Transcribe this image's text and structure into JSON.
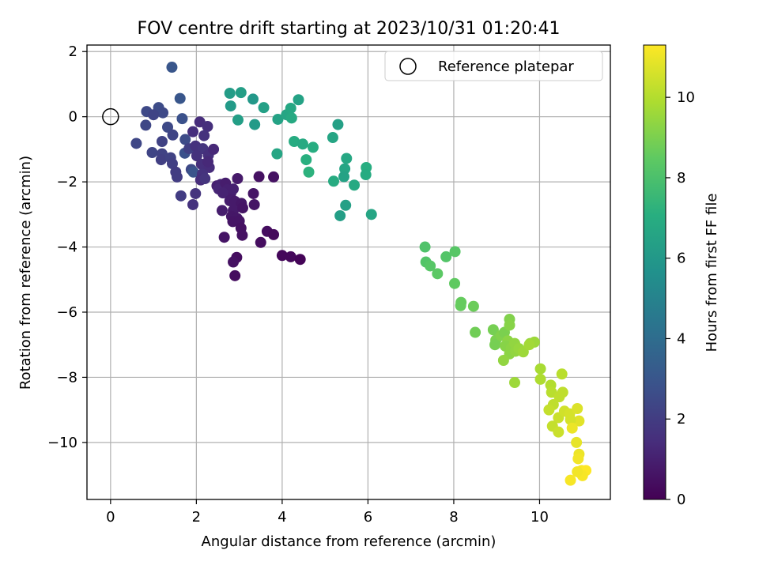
{
  "chart_data": {
    "type": "scatter",
    "title": "FOV centre drift starting at 2023/10/31 01:20:41",
    "xlabel": "Angular distance from reference (arcmin)",
    "ylabel": "Rotation from reference (arcmin)",
    "colorbar_label": "Hours from first FF file",
    "xlim": [
      -0.55,
      11.65
    ],
    "ylim": [
      -11.75,
      2.2
    ],
    "clim": [
      0,
      11.3
    ],
    "colormap": "viridis",
    "x_ticks": [
      0,
      2,
      4,
      6,
      8,
      10
    ],
    "x_tick_labels": [
      "0",
      "2",
      "4",
      "6",
      "8",
      "10"
    ],
    "y_ticks": [
      2,
      0,
      -2,
      -4,
      -6,
      -8,
      -10
    ],
    "y_tick_labels": [
      "2",
      "0",
      "−2",
      "−4",
      "−6",
      "−8",
      "−10"
    ],
    "colorbar_ticks": [
      0,
      2,
      4,
      6,
      8,
      10
    ],
    "colorbar_tick_labels": [
      "0",
      "2",
      "4",
      "6",
      "8",
      "10"
    ],
    "grid": true,
    "legend": {
      "placement": "upper right",
      "label": "Reference platepar"
    },
    "reference_point": {
      "x": 0,
      "y": 0
    },
    "points": [
      {
        "x": 1.43,
        "y": 1.52,
        "t": 3.0
      },
      {
        "x": 1.62,
        "y": 0.56,
        "t": 3.0
      },
      {
        "x": 0.84,
        "y": 0.16,
        "t": 2.5
      },
      {
        "x": 1.12,
        "y": 0.28,
        "t": 2.6
      },
      {
        "x": 1.22,
        "y": 0.12,
        "t": 2.5
      },
      {
        "x": 1.0,
        "y": 0.06,
        "t": 2.3
      },
      {
        "x": 0.82,
        "y": -0.26,
        "t": 2.4
      },
      {
        "x": 1.33,
        "y": -0.32,
        "t": 2.5
      },
      {
        "x": 0.6,
        "y": -0.82,
        "t": 2.4
      },
      {
        "x": 1.2,
        "y": -0.76,
        "t": 2.2
      },
      {
        "x": 0.97,
        "y": -1.1,
        "t": 2.3
      },
      {
        "x": 1.2,
        "y": -1.14,
        "t": 2.2
      },
      {
        "x": 1.18,
        "y": -1.32,
        "t": 2.1
      },
      {
        "x": 1.4,
        "y": -1.26,
        "t": 2.2
      },
      {
        "x": 1.44,
        "y": -1.44,
        "t": 2.1
      },
      {
        "x": 1.52,
        "y": -1.7,
        "t": 2.0
      },
      {
        "x": 1.55,
        "y": -1.85,
        "t": 2.0
      },
      {
        "x": 1.67,
        "y": -0.06,
        "t": 2.8
      },
      {
        "x": 1.45,
        "y": -0.56,
        "t": 2.3
      },
      {
        "x": 1.74,
        "y": -0.7,
        "t": 2.6
      },
      {
        "x": 1.73,
        "y": -1.12,
        "t": 2.8
      },
      {
        "x": 1.83,
        "y": -0.98,
        "t": 2.1
      },
      {
        "x": 1.88,
        "y": -1.62,
        "t": 2.5
      },
      {
        "x": 1.93,
        "y": -1.7,
        "t": 2.9
      },
      {
        "x": 1.64,
        "y": -2.43,
        "t": 2.0
      },
      {
        "x": 1.92,
        "y": -2.7,
        "t": 1.6
      },
      {
        "x": 1.98,
        "y": -2.36,
        "t": 1.7
      },
      {
        "x": 2.08,
        "y": -0.16,
        "t": 1.4
      },
      {
        "x": 2.26,
        "y": -0.3,
        "t": 1.5
      },
      {
        "x": 1.92,
        "y": -0.46,
        "t": 1.5
      },
      {
        "x": 2.18,
        "y": -0.58,
        "t": 1.6
      },
      {
        "x": 1.98,
        "y": -0.9,
        "t": 1.6
      },
      {
        "x": 2.15,
        "y": -0.98,
        "t": 1.7
      },
      {
        "x": 2.01,
        "y": -1.2,
        "t": 1.6
      },
      {
        "x": 2.28,
        "y": -1.18,
        "t": 1.5
      },
      {
        "x": 2.12,
        "y": -1.46,
        "t": 1.5
      },
      {
        "x": 2.3,
        "y": -1.56,
        "t": 1.4
      },
      {
        "x": 2.14,
        "y": -1.76,
        "t": 1.6
      },
      {
        "x": 2.1,
        "y": -1.94,
        "t": 1.4
      },
      {
        "x": 2.2,
        "y": -1.9,
        "t": 1.7
      },
      {
        "x": 2.27,
        "y": -1.38,
        "t": 1.3
      },
      {
        "x": 2.4,
        "y": -1.0,
        "t": 1.3
      },
      {
        "x": 2.48,
        "y": -2.12,
        "t": 1.0
      },
      {
        "x": 2.57,
        "y": -2.08,
        "t": 1.1
      },
      {
        "x": 2.52,
        "y": -2.22,
        "t": 1.2
      },
      {
        "x": 2.68,
        "y": -2.04,
        "t": 0.9
      },
      {
        "x": 2.72,
        "y": -2.24,
        "t": 1.0
      },
      {
        "x": 2.8,
        "y": -2.36,
        "t": 0.9
      },
      {
        "x": 2.62,
        "y": -2.34,
        "t": 1.1
      },
      {
        "x": 2.86,
        "y": -2.22,
        "t": 1.0
      },
      {
        "x": 2.96,
        "y": -1.9,
        "t": 0.8
      },
      {
        "x": 2.78,
        "y": -2.58,
        "t": 0.9
      },
      {
        "x": 2.9,
        "y": -2.6,
        "t": 0.8
      },
      {
        "x": 3.05,
        "y": -2.66,
        "t": 0.7
      },
      {
        "x": 2.6,
        "y": -2.88,
        "t": 0.9
      },
      {
        "x": 2.86,
        "y": -2.88,
        "t": 0.8
      },
      {
        "x": 2.82,
        "y": -3.06,
        "t": 0.7
      },
      {
        "x": 2.95,
        "y": -3.12,
        "t": 0.7
      },
      {
        "x": 2.85,
        "y": -3.22,
        "t": 0.6
      },
      {
        "x": 3.0,
        "y": -3.2,
        "t": 0.6
      },
      {
        "x": 3.08,
        "y": -2.8,
        "t": 0.6
      },
      {
        "x": 3.33,
        "y": -2.36,
        "t": 0.6
      },
      {
        "x": 3.35,
        "y": -2.7,
        "t": 0.6
      },
      {
        "x": 3.04,
        "y": -3.42,
        "t": 0.5
      },
      {
        "x": 3.07,
        "y": -3.64,
        "t": 0.5
      },
      {
        "x": 2.65,
        "y": -3.7,
        "t": 0.6
      },
      {
        "x": 3.46,
        "y": -1.84,
        "t": 0.5
      },
      {
        "x": 3.8,
        "y": -1.85,
        "t": 0.5
      },
      {
        "x": 3.5,
        "y": -3.86,
        "t": 0.4
      },
      {
        "x": 3.65,
        "y": -3.52,
        "t": 0.4
      },
      {
        "x": 3.8,
        "y": -3.62,
        "t": 0.3
      },
      {
        "x": 2.94,
        "y": -4.32,
        "t": 0.4
      },
      {
        "x": 2.86,
        "y": -4.46,
        "t": 0.5
      },
      {
        "x": 2.9,
        "y": -4.88,
        "t": 0.4
      },
      {
        "x": 4.0,
        "y": -4.26,
        "t": 0.2
      },
      {
        "x": 4.2,
        "y": -4.3,
        "t": 0.2
      },
      {
        "x": 4.42,
        "y": -4.38,
        "t": 0.1
      },
      {
        "x": 2.78,
        "y": 0.72,
        "t": 6.2
      },
      {
        "x": 3.04,
        "y": 0.74,
        "t": 6.3
      },
      {
        "x": 2.8,
        "y": 0.33,
        "t": 6.1
      },
      {
        "x": 3.32,
        "y": 0.54,
        "t": 6.0
      },
      {
        "x": 3.57,
        "y": 0.28,
        "t": 6.4
      },
      {
        "x": 2.97,
        "y": -0.1,
        "t": 6.3
      },
      {
        "x": 3.36,
        "y": -0.24,
        "t": 6.1
      },
      {
        "x": 3.9,
        "y": -0.08,
        "t": 6.5
      },
      {
        "x": 4.1,
        "y": 0.06,
        "t": 6.6
      },
      {
        "x": 4.2,
        "y": 0.26,
        "t": 6.7
      },
      {
        "x": 4.38,
        "y": 0.52,
        "t": 6.5
      },
      {
        "x": 4.22,
        "y": -0.04,
        "t": 6.8
      },
      {
        "x": 3.88,
        "y": -1.14,
        "t": 6.6
      },
      {
        "x": 4.28,
        "y": -0.76,
        "t": 6.9
      },
      {
        "x": 4.48,
        "y": -0.84,
        "t": 6.8
      },
      {
        "x": 4.72,
        "y": -0.94,
        "t": 7.0
      },
      {
        "x": 4.56,
        "y": -1.32,
        "t": 7.1
      },
      {
        "x": 4.62,
        "y": -1.7,
        "t": 7.2
      },
      {
        "x": 5.18,
        "y": -0.64,
        "t": 6.6
      },
      {
        "x": 5.3,
        "y": -0.24,
        "t": 6.4
      },
      {
        "x": 5.2,
        "y": -1.98,
        "t": 6.9
      },
      {
        "x": 5.5,
        "y": -1.28,
        "t": 6.7
      },
      {
        "x": 5.46,
        "y": -1.6,
        "t": 6.6
      },
      {
        "x": 5.44,
        "y": -1.84,
        "t": 6.5
      },
      {
        "x": 5.68,
        "y": -2.1,
        "t": 6.8
      },
      {
        "x": 5.96,
        "y": -1.56,
        "t": 7.0
      },
      {
        "x": 5.95,
        "y": -1.78,
        "t": 6.9
      },
      {
        "x": 5.48,
        "y": -2.72,
        "t": 6.4
      },
      {
        "x": 5.35,
        "y": -3.04,
        "t": 6.3
      },
      {
        "x": 6.08,
        "y": -3.0,
        "t": 6.6
      },
      {
        "x": 7.33,
        "y": -4.0,
        "t": 8.1
      },
      {
        "x": 7.35,
        "y": -4.46,
        "t": 8.2
      },
      {
        "x": 7.45,
        "y": -4.58,
        "t": 8.3
      },
      {
        "x": 7.62,
        "y": -4.82,
        "t": 8.4
      },
      {
        "x": 7.82,
        "y": -4.3,
        "t": 8.2
      },
      {
        "x": 8.03,
        "y": -4.14,
        "t": 8.3
      },
      {
        "x": 8.02,
        "y": -5.12,
        "t": 8.5
      },
      {
        "x": 8.17,
        "y": -5.7,
        "t": 8.6
      },
      {
        "x": 8.16,
        "y": -5.8,
        "t": 8.6
      },
      {
        "x": 8.46,
        "y": -5.82,
        "t": 8.7
      },
      {
        "x": 8.5,
        "y": -6.62,
        "t": 8.8
      },
      {
        "x": 8.92,
        "y": -6.54,
        "t": 8.9
      },
      {
        "x": 8.98,
        "y": -6.86,
        "t": 9.0
      },
      {
        "x": 8.96,
        "y": -7.0,
        "t": 8.9
      },
      {
        "x": 9.1,
        "y": -6.72,
        "t": 9.1
      },
      {
        "x": 9.18,
        "y": -6.62,
        "t": 9.0
      },
      {
        "x": 9.3,
        "y": -6.22,
        "t": 9.1
      },
      {
        "x": 9.3,
        "y": -6.4,
        "t": 9.2
      },
      {
        "x": 9.26,
        "y": -6.88,
        "t": 9.3
      },
      {
        "x": 9.2,
        "y": -7.04,
        "t": 9.2
      },
      {
        "x": 9.34,
        "y": -7.1,
        "t": 9.3
      },
      {
        "x": 9.42,
        "y": -6.96,
        "t": 9.4
      },
      {
        "x": 9.3,
        "y": -7.28,
        "t": 9.3
      },
      {
        "x": 9.16,
        "y": -7.48,
        "t": 9.4
      },
      {
        "x": 9.44,
        "y": -7.2,
        "t": 9.4
      },
      {
        "x": 9.52,
        "y": -7.12,
        "t": 9.5
      },
      {
        "x": 9.62,
        "y": -7.22,
        "t": 9.6
      },
      {
        "x": 9.78,
        "y": -6.96,
        "t": 9.5
      },
      {
        "x": 9.88,
        "y": -6.92,
        "t": 9.6
      },
      {
        "x": 9.76,
        "y": -7.0,
        "t": 9.7
      },
      {
        "x": 9.42,
        "y": -8.16,
        "t": 9.6
      },
      {
        "x": 10.02,
        "y": -7.74,
        "t": 9.8
      },
      {
        "x": 10.02,
        "y": -8.06,
        "t": 9.9
      },
      {
        "x": 10.26,
        "y": -8.24,
        "t": 10.0
      },
      {
        "x": 10.28,
        "y": -8.46,
        "t": 10.1
      },
      {
        "x": 10.46,
        "y": -8.6,
        "t": 10.2
      },
      {
        "x": 10.54,
        "y": -8.46,
        "t": 10.2
      },
      {
        "x": 10.52,
        "y": -7.9,
        "t": 10.1
      },
      {
        "x": 10.32,
        "y": -8.84,
        "t": 10.2
      },
      {
        "x": 10.22,
        "y": -9.0,
        "t": 10.3
      },
      {
        "x": 10.44,
        "y": -9.24,
        "t": 10.4
      },
      {
        "x": 10.58,
        "y": -9.04,
        "t": 10.5
      },
      {
        "x": 10.3,
        "y": -9.5,
        "t": 10.3
      },
      {
        "x": 10.44,
        "y": -9.68,
        "t": 10.4
      },
      {
        "x": 10.7,
        "y": -9.12,
        "t": 10.6
      },
      {
        "x": 10.88,
        "y": -8.96,
        "t": 10.7
      },
      {
        "x": 10.92,
        "y": -9.34,
        "t": 10.8
      },
      {
        "x": 10.72,
        "y": -9.3,
        "t": 10.6
      },
      {
        "x": 10.76,
        "y": -9.56,
        "t": 11.0
      },
      {
        "x": 10.86,
        "y": -10.0,
        "t": 10.9
      },
      {
        "x": 10.92,
        "y": -10.36,
        "t": 11.0
      },
      {
        "x": 10.9,
        "y": -10.5,
        "t": 11.1
      },
      {
        "x": 10.98,
        "y": -10.86,
        "t": 11.2
      },
      {
        "x": 11.08,
        "y": -10.86,
        "t": 11.3
      },
      {
        "x": 11.0,
        "y": -11.02,
        "t": 11.2
      },
      {
        "x": 10.88,
        "y": -10.9,
        "t": 11.1
      },
      {
        "x": 10.72,
        "y": -11.16,
        "t": 11.2
      }
    ]
  }
}
